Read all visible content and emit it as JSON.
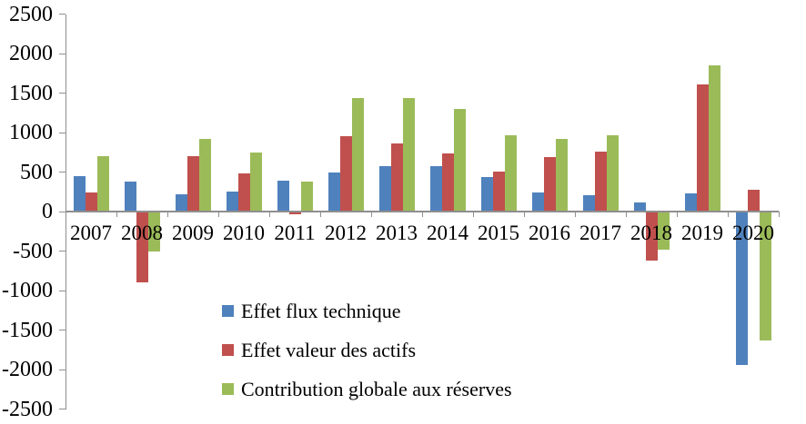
{
  "chart_data": {
    "type": "bar",
    "title": "",
    "xlabel": "",
    "ylabel": "",
    "categories": [
      "2007",
      "2008",
      "2009",
      "2010",
      "2011",
      "2012",
      "2013",
      "2014",
      "2015",
      "2016",
      "2017",
      "2018",
      "2019",
      "2020"
    ],
    "series": [
      {
        "name": "Effet flux technique",
        "color": "#4F81BD",
        "values": [
          450,
          380,
          220,
          250,
          390,
          500,
          570,
          570,
          440,
          240,
          210,
          120,
          230,
          -1940
        ]
      },
      {
        "name": "Effet valeur des actifs",
        "color": "#C0504D",
        "values": [
          240,
          -900,
          700,
          480,
          -30,
          950,
          860,
          730,
          510,
          690,
          760,
          -620,
          1610,
          280
        ]
      },
      {
        "name": "Contribution globale aux réserves",
        "color": "#9BBB59",
        "values": [
          700,
          -500,
          920,
          750,
          380,
          1440,
          1440,
          1300,
          960,
          920,
          970,
          -480,
          1850,
          -1630
        ]
      }
    ],
    "ylim": [
      -2500,
      2500
    ],
    "y_tick_step": 500,
    "y_ticks": [
      2500,
      2000,
      1500,
      1000,
      500,
      0,
      -500,
      -1000,
      -1500,
      -2000,
      -2500
    ],
    "grid": false,
    "legend_position": "inside-bottom-left",
    "axis_color": "#8f8f8f",
    "text_color": "#000000",
    "background_color": "#ffffff"
  }
}
